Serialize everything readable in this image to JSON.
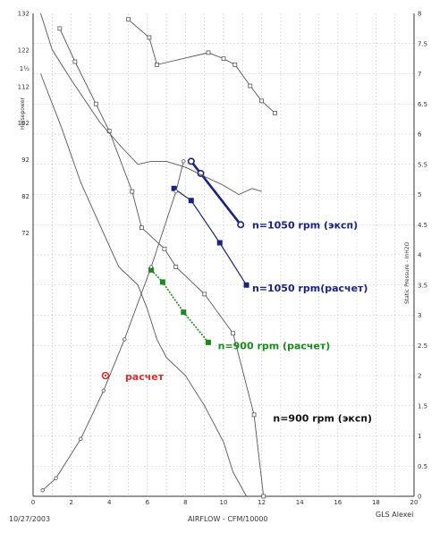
{
  "chart_data": {
    "type": "line",
    "xlabel": "AIRFLOW - CFM/10000",
    "ylabel_left": "Horsepower",
    "ylabel_right": "Static Pressure - InH2O",
    "xlim": [
      0,
      20
    ],
    "ylim_right": [
      0,
      8
    ],
    "ylim_left": [
      0,
      132
    ],
    "x_ticks": [
      "0",
      "2",
      "4",
      "6",
      "8",
      "10",
      "12",
      "14",
      "16",
      "18",
      "20"
    ],
    "y_right_ticks": [
      "0",
      "0.5",
      "1",
      "1.5",
      "2",
      "2.5",
      "3",
      "3.5",
      "4",
      "4.5",
      "5",
      "5.5",
      "6",
      "6.5",
      "7",
      "7.5",
      "8"
    ],
    "y_left_ticks": [
      "132",
      "122",
      "1½",
      "112",
      "102",
      "92",
      "82",
      "72"
    ],
    "y_left_tick_values": [
      132,
      122,
      117,
      112,
      102,
      92,
      82,
      72
    ],
    "footer_left": "10/27/2003",
    "footer_right": "GLS Alexei",
    "series": [
      {
        "name": "n=1050 rpm (эксп)",
        "color": "#1a237e",
        "style": "bold-circle",
        "points": [
          [
            8.3,
            5.55
          ],
          [
            8.8,
            5.35
          ],
          [
            10.9,
            4.5
          ]
        ]
      },
      {
        "name": "n=1050 rpm(расчет)",
        "color": "#1a237e",
        "style": "thin-square",
        "points": [
          [
            7.4,
            5.1
          ],
          [
            8.3,
            4.9
          ],
          [
            9.8,
            4.2
          ],
          [
            11.2,
            3.5
          ]
        ]
      },
      {
        "name": "n=900 rpm (расчет)",
        "color": "#1b8a1b",
        "style": "dotted-square",
        "points": [
          [
            6.2,
            3.75
          ],
          [
            6.8,
            3.55
          ],
          [
            7.9,
            3.05
          ],
          [
            9.2,
            2.55
          ]
        ]
      },
      {
        "name": "",
        "color": "#555555",
        "style": "gray-square",
        "points": [
          [
            1.4,
            7.75
          ],
          [
            2.2,
            7.2
          ],
          [
            3.3,
            6.5
          ],
          [
            4.0,
            6.05
          ],
          [
            5.2,
            5.05
          ],
          [
            5.7,
            4.45
          ],
          [
            6.9,
            4.1
          ],
          [
            7.5,
            3.8
          ],
          [
            9.0,
            3.35
          ],
          [
            10.5,
            2.7
          ],
          [
            11.6,
            1.35
          ],
          [
            12.1,
            0
          ]
        ]
      },
      {
        "name": "",
        "color": "#555555",
        "style": "gray-square",
        "points": [
          [
            5.0,
            7.9
          ],
          [
            6.1,
            7.6
          ],
          [
            6.5,
            7.15
          ],
          [
            9.2,
            7.35
          ],
          [
            10.0,
            7.25
          ],
          [
            10.6,
            7.15
          ],
          [
            11.4,
            6.8
          ],
          [
            12.0,
            6.55
          ],
          [
            12.7,
            6.35
          ]
        ]
      },
      {
        "name": "",
        "color": "#555555",
        "style": "gray-circle",
        "points": [
          [
            0.5,
            0.1
          ],
          [
            1.2,
            0.3
          ],
          [
            2.5,
            0.95
          ],
          [
            3.7,
            1.75
          ],
          [
            4.8,
            2.6
          ],
          [
            6.2,
            3.8
          ],
          [
            7.5,
            5.05
          ],
          [
            7.9,
            5.55
          ]
        ]
      },
      {
        "name": "",
        "color": "#555555",
        "style": "gray-line",
        "points": [
          [
            0.4,
            8
          ],
          [
            1.0,
            7.4
          ],
          [
            2.0,
            6.9
          ],
          [
            3.5,
            6.2
          ],
          [
            4.6,
            5.8
          ],
          [
            5.5,
            5.5
          ],
          [
            6.2,
            5.55
          ],
          [
            7.0,
            5.55
          ],
          [
            8.0,
            5.45
          ],
          [
            9.0,
            5.3
          ],
          [
            10.0,
            5.15
          ],
          [
            10.8,
            5.0
          ],
          [
            11.5,
            5.1
          ],
          [
            12.0,
            5.05
          ]
        ]
      },
      {
        "name": "",
        "color": "#555555",
        "style": "gray-line",
        "points": [
          [
            0.4,
            7.0
          ],
          [
            1.5,
            6.1
          ],
          [
            2.5,
            5.2
          ],
          [
            3.5,
            4.5
          ],
          [
            4.5,
            3.8
          ],
          [
            5.5,
            3.5
          ],
          [
            6.0,
            3.1
          ],
          [
            6.5,
            2.6
          ],
          [
            7.0,
            2.3
          ],
          [
            8.0,
            2.0
          ],
          [
            9.0,
            1.5
          ],
          [
            10.0,
            0.9
          ],
          [
            10.5,
            0.4
          ],
          [
            11.2,
            0
          ]
        ]
      }
    ],
    "calc_point": {
      "label": "расчет",
      "x": 3.8,
      "y": 2.0,
      "color": "#d32f2f"
    },
    "annotations": [
      {
        "text": "n=1050 rpm (эксп)",
        "color": "#1a237e",
        "x": 11.5,
        "y": 4.5
      },
      {
        "text": "n=1050 rpm(расчет)",
        "color": "#1a237e",
        "x": 11.5,
        "y": 3.45
      },
      {
        "text": "n=900 rpm (расчет)",
        "color": "#1b8a1b",
        "x": 9.7,
        "y": 2.5
      },
      {
        "text": "n=900 rpm (эксп)",
        "color": "#111111",
        "x": 12.6,
        "y": 1.3
      }
    ]
  }
}
